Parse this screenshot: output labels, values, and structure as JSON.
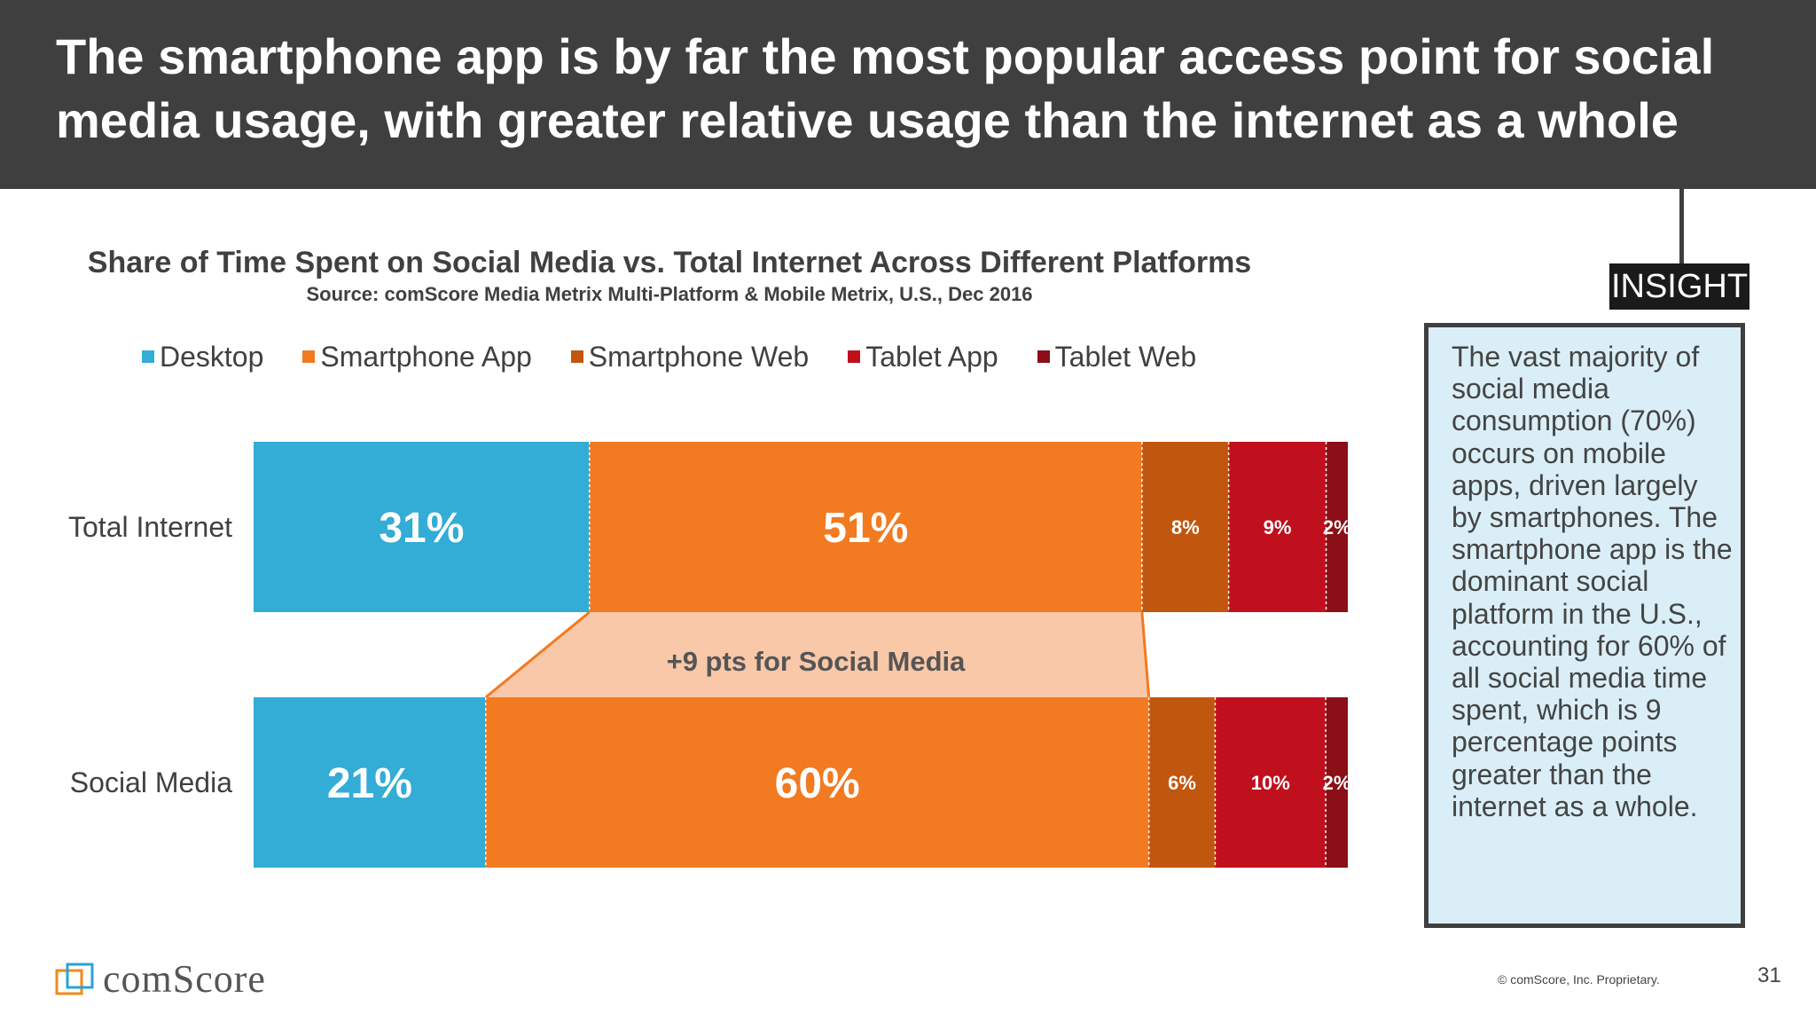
{
  "header": {
    "title": "The smartphone app is by far the most popular access point for social media usage, with greater relative usage than the internet as a whole"
  },
  "chart_data": {
    "type": "bar",
    "orientation": "horizontal",
    "stacked": true,
    "title": "Share of Time Spent on Social Media vs. Total Internet Across Different Platforms",
    "subtitle": "Source: comScore Media Metrix Multi-Platform & Mobile Metrix, U.S., Dec 2016",
    "categories": [
      "Total Internet",
      "Social Media"
    ],
    "series": [
      {
        "name": "Desktop",
        "color": "#33acd6",
        "values": [
          31,
          21
        ],
        "labels": [
          "31%",
          "21%"
        ]
      },
      {
        "name": "Smartphone App",
        "color": "#f27a21",
        "values": [
          51,
          60
        ],
        "labels": [
          "51%",
          "60%"
        ]
      },
      {
        "name": "Smartphone Web",
        "color": "#c1560f",
        "values": [
          8,
          6
        ],
        "labels": [
          "8%",
          "6%"
        ]
      },
      {
        "name": "Tablet App",
        "color": "#c0101e",
        "values": [
          9,
          10
        ],
        "labels": [
          "9%",
          "10%"
        ]
      },
      {
        "name": "Tablet Web",
        "color": "#8a0f16",
        "values": [
          2,
          2
        ],
        "labels": [
          "2%",
          "2%"
        ]
      }
    ],
    "legend_position": "top",
    "grid": false,
    "annotation": "+9 pts for Social Media",
    "annotation_color": "#f9c8a8"
  },
  "insight": {
    "tab": "INSIGHT",
    "text": "The vast majority of social media consumption (70%) occurs on mobile apps, driven largely by smartphones. The smartphone app is the dominant social platform in the U.S., accounting for 60% of all social media time spent, which is 9 percentage points greater than the internet as a whole."
  },
  "footer": {
    "logo_text": "comScore",
    "logo_icon": "comscore-logo-icon",
    "copyright": "© comScore, Inc. Proprietary.",
    "page_number": "31"
  }
}
